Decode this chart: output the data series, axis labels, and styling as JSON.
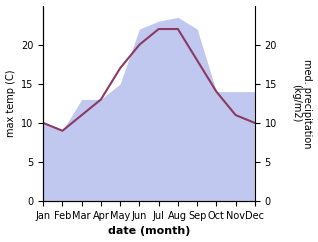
{
  "months": [
    "Jan",
    "Feb",
    "Mar",
    "Apr",
    "May",
    "Jun",
    "Jul",
    "Aug",
    "Sep",
    "Oct",
    "Nov",
    "Dec"
  ],
  "temp": [
    10,
    9,
    11,
    13,
    17,
    20,
    22,
    22,
    18,
    14,
    11,
    10
  ],
  "precip": [
    10,
    9,
    13,
    13,
    15,
    22,
    23,
    23.5,
    22,
    14,
    14,
    14
  ],
  "temp_color": "#8B3A62",
  "precip_color": "#c0c8f0",
  "xlabel": "date (month)",
  "ylabel_left": "max temp (C)",
  "ylabel_right": "med. precipitation\n(kg/m2)",
  "ylim": [
    0,
    25
  ],
  "yticks": [
    0,
    5,
    10,
    15,
    20
  ],
  "bg_color": "#ffffff",
  "line_width": 1.5,
  "label_fontsize": 7,
  "tick_fontsize": 7,
  "xlabel_fontsize": 8
}
